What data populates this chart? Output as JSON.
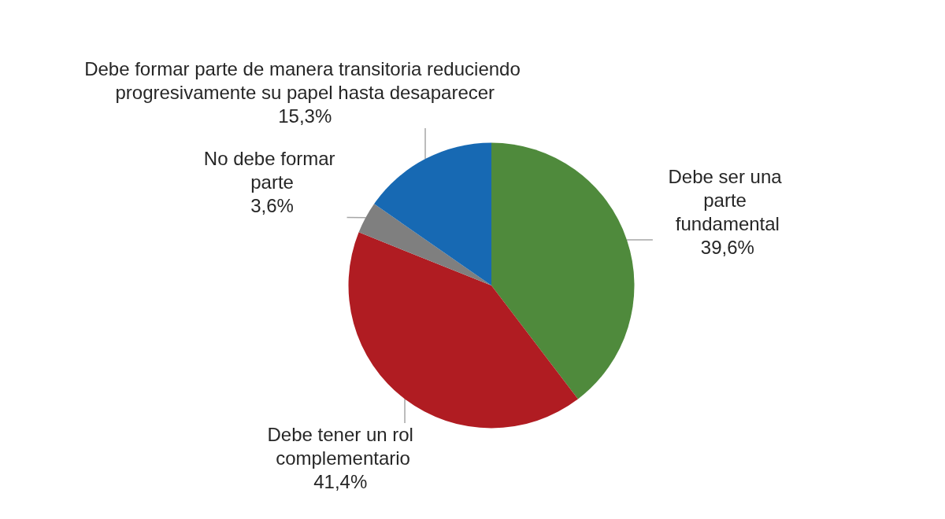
{
  "chart_data": {
    "type": "pie",
    "categories": [
      "Debe ser una parte fundamental",
      "Debe tener un rol complementario",
      "No debe formar parte",
      "Debe formar parte de manera transitoria reduciendo progresivamente su papel hasta desaparecer"
    ],
    "values": [
      39.6,
      41.4,
      3.6,
      15.3
    ],
    "colors": [
      "#4f8a3c",
      "#b01c22",
      "#7f7f7f",
      "#1769b3"
    ],
    "value_labels": [
      "39,6%",
      "41,4%",
      "3,6%",
      "15,3%"
    ]
  }
}
